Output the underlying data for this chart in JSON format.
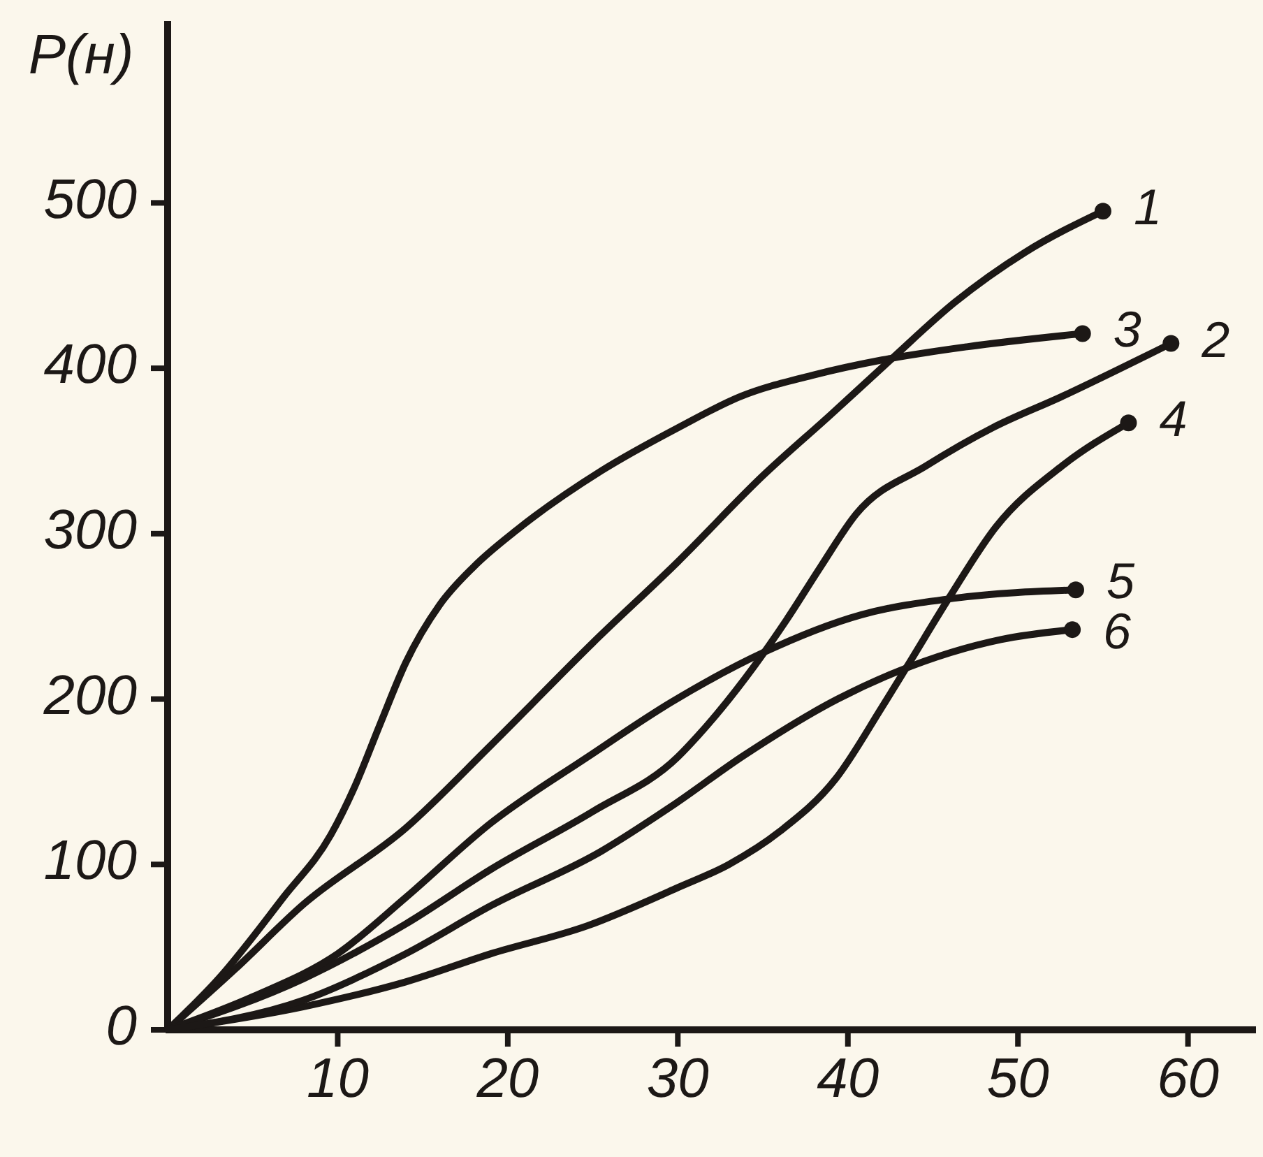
{
  "chart_data": {
    "type": "line",
    "ylabel": "P(н)",
    "xlim": [
      0,
      64
    ],
    "ylim": [
      0,
      610
    ],
    "xticks": [
      10,
      20,
      30,
      40,
      50,
      60
    ],
    "yticks": [
      0,
      100,
      200,
      300,
      400,
      500
    ],
    "line_style": "solid",
    "series": [
      {
        "name": "1",
        "color": "#1c1816",
        "x": [
          0,
          4,
          8,
          14,
          19,
          25,
          30,
          35,
          39,
          42.5,
          46.3,
          50.4,
          55
        ],
        "values": [
          0,
          37,
          76,
          122,
          172,
          234,
          283,
          335,
          372,
          405,
          440,
          470,
          495
        ]
      },
      {
        "name": "2",
        "color": "#1c1816",
        "x": [
          0,
          8,
          14,
          19,
          25,
          30,
          31.2,
          34.5,
          36.4,
          38.4,
          40.5,
          44.6,
          48.5,
          52.6,
          59
        ],
        "values": [
          0,
          31,
          64,
          97,
          132,
          165,
          178,
          220,
          248,
          280,
          312,
          341,
          364,
          383,
          415
        ]
      },
      {
        "name": "3",
        "color": "#1c1816",
        "x": [
          0,
          3,
          6.8,
          9.6,
          11,
          12.5,
          14,
          16,
          18,
          20.5,
          25.5,
          30,
          33.7,
          38,
          42,
          47,
          53.8
        ],
        "values": [
          0,
          31,
          80,
          118,
          147,
          185,
          222,
          257,
          280,
          302,
          338,
          364,
          383,
          396,
          405,
          413,
          421
        ]
      },
      {
        "name": "4",
        "color": "#1c1816",
        "x": [
          0,
          8,
          14,
          19,
          24.7,
          30,
          33,
          36,
          39.3,
          42,
          43.5,
          46,
          48.7,
          52.6,
          56.5
        ],
        "values": [
          0,
          14,
          29,
          46,
          63,
          86,
          100,
          120,
          152,
          195,
          220,
          262,
          304,
          341,
          367
        ]
      },
      {
        "name": "5",
        "color": "#1c1816",
        "x": [
          0,
          5,
          10,
          14,
          19,
          24.7,
          29.6,
          35,
          40.8,
          46.3,
          53.4
        ],
        "values": [
          0,
          20,
          46,
          80,
          125,
          165,
          198,
          228,
          251,
          261,
          266
        ]
      },
      {
        "name": "6",
        "color": "#1c1816",
        "x": [
          0,
          8,
          14,
          19,
          25.5,
          29.6,
          33.9,
          39.4,
          43,
          49,
          53.2
        ],
        "values": [
          0,
          18,
          46,
          75,
          108,
          135,
          166,
          200,
          217,
          236,
          242
        ]
      }
    ]
  }
}
